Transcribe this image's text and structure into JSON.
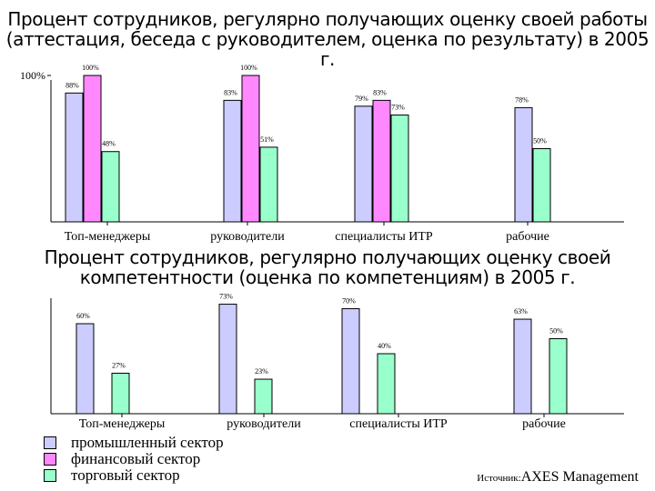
{
  "chart_data": [
    {
      "type": "bar",
      "title": "Процент сотрудников, регулярно получающих оценку своей работы (аттестация, беседа с руководителем, оценка по результату) в 2005 г.",
      "categories": [
        "Топ-менеджеры",
        "руководители",
        "специалисты ИТР",
        "рабочие"
      ],
      "series": [
        {
          "name": "промышленный сектор",
          "values": [
            88,
            83,
            79,
            78
          ],
          "labels": [
            "88%",
            "83%",
            "79%",
            "78%"
          ]
        },
        {
          "name": "финансовый сектор",
          "values": [
            100,
            100,
            83,
            null
          ],
          "labels": [
            "100%",
            "100%",
            "83%",
            ""
          ]
        },
        {
          "name": "торговый сектор",
          "values": [
            48,
            51,
            73,
            50
          ],
          "labels": [
            "48%",
            "51%",
            "73%",
            "50%"
          ]
        }
      ],
      "ylim": [
        0,
        110
      ],
      "ytick": "100%",
      "ytick_value": 100
    },
    {
      "type": "bar",
      "title": "Процент сотрудников, регулярно получающих оценку своей компетентности (оценка по компетенциям) в 2005 г.",
      "categories": [
        "Топ-менеджеры",
        "руководители",
        "специалисты ИТР",
        "рабочие"
      ],
      "series": [
        {
          "name": "промышленный сектор",
          "values": [
            60,
            73,
            70,
            63
          ],
          "labels": [
            "60%",
            "73%",
            "70%",
            "63%"
          ]
        },
        {
          "name": "финансовый сектор",
          "values": [
            null,
            null,
            null,
            null
          ],
          "labels": [
            "",
            "",
            "",
            ""
          ]
        },
        {
          "name": "торговый сектор",
          "values": [
            27,
            23,
            40,
            50
          ],
          "labels": [
            "27%",
            "23%",
            "40%",
            "50%"
          ]
        }
      ],
      "ylim": [
        0,
        80
      ]
    }
  ],
  "legend": [
    "промышленный сектор",
    "финансовый сектор",
    "торговый сектор"
  ],
  "colors": {
    "industrial": "#ccccff",
    "financial": "#ff88ff",
    "trade": "#99ffcc"
  },
  "source": {
    "label": "Источник:",
    "value": "AXES Management"
  }
}
